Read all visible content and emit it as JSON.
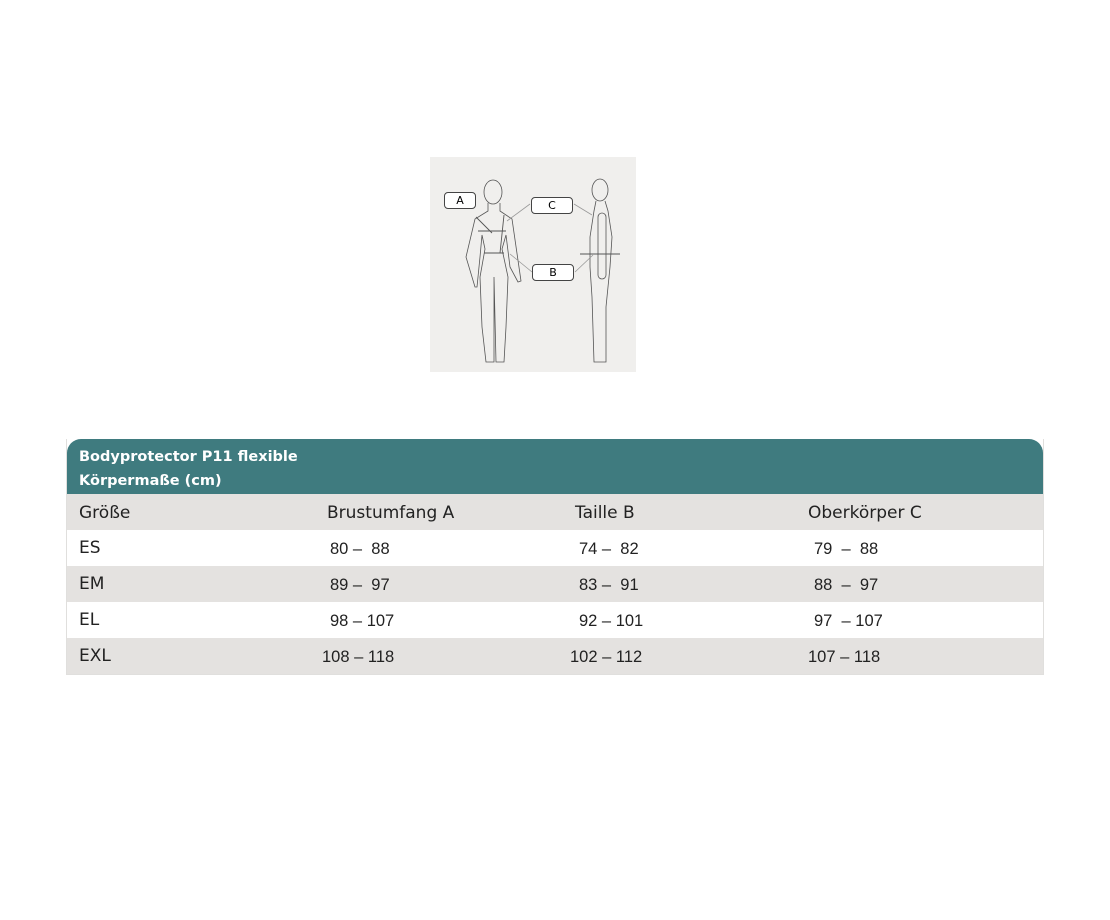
{
  "figure": {
    "labels": [
      "A",
      "C",
      "B"
    ]
  },
  "table": {
    "title": "Bodyprotector P11 flexible",
    "subtitle": "Körpermaße (cm)",
    "columns": [
      "Größe",
      "Brustumfang A",
      "Taille B",
      "Oberkörper C"
    ],
    "rows": [
      [
        "ES",
        "80 –  88",
        "74 –  82",
        "79  –  88"
      ],
      [
        "EM",
        "89 –  97",
        "83 –  91",
        "88  –  97"
      ],
      [
        "EL",
        "98 – 107",
        "92 – 101",
        "97  – 107"
      ],
      [
        "EXL",
        "108 – 118",
        "102 – 112",
        "107 – 118"
      ]
    ]
  },
  "colors": {
    "header": "#3f7b7f",
    "stripe": "#e4e2e0"
  }
}
